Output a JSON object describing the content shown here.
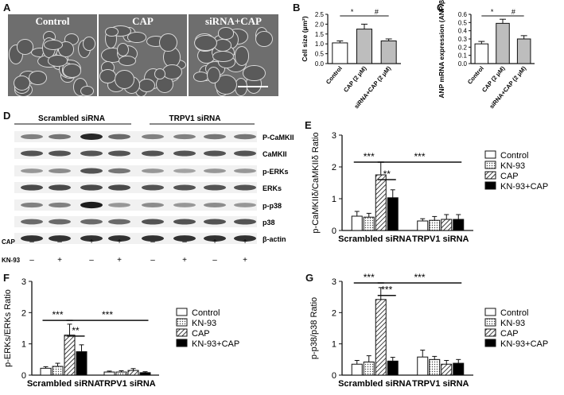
{
  "panel_labels": {
    "A": "A",
    "B": "B",
    "C": "C",
    "D": "D",
    "E": "E",
    "F": "F",
    "G": "G"
  },
  "micrographs": [
    {
      "title": "Control"
    },
    {
      "title": "CAP"
    },
    {
      "title": "siRNA+CAP"
    }
  ],
  "blot": {
    "group_titles": [
      "Scrambled siRNA",
      "TRPV1 siRNA"
    ],
    "bands": [
      "P-CaMKII",
      "CaMKII",
      "p-ERKs",
      "ERKs",
      "p-p38",
      "p38",
      "β-actin"
    ],
    "row_labels": [
      "CAP",
      "KN-93"
    ],
    "cap_signs": [
      "–",
      "–",
      "+",
      "+",
      "–",
      "–",
      "+",
      "+"
    ],
    "kn93_signs": [
      "–",
      "+",
      "–",
      "+",
      "–",
      "+",
      "–",
      "+"
    ]
  },
  "chart_data": [
    {
      "id": "B",
      "type": "bar",
      "ylabel": "Cell size (µm²)",
      "categories": [
        "Control",
        "CAP (2 μM)",
        "siRNA+CAP (2 μM)"
      ],
      "values": [
        1.05,
        1.75,
        1.15
      ],
      "errors": [
        0.1,
        0.25,
        0.1
      ],
      "ylim": [
        0,
        2.5
      ],
      "yticks": [
        "0.0",
        "0.5",
        "1.0",
        "1.5",
        "2.0",
        "2.5"
      ],
      "sig": [
        {
          "from": 0,
          "to": 1,
          "label": "*"
        },
        {
          "from": 1,
          "to": 2,
          "label": "#"
        }
      ]
    },
    {
      "id": "C",
      "type": "bar",
      "ylabel": "ANP mRNA expression (ANP/β-actin)",
      "categories": [
        "Control",
        "CAP (2 μM)",
        "siRNA+CAP (2 μM)"
      ],
      "values": [
        0.24,
        0.49,
        0.3
      ],
      "errors": [
        0.03,
        0.05,
        0.04
      ],
      "ylim": [
        0,
        0.6
      ],
      "yticks": [
        "0.0",
        "0.1",
        "0.2",
        "0.3",
        "0.4",
        "0.5",
        "0.6"
      ],
      "sig": [
        {
          "from": 0,
          "to": 1,
          "label": "*"
        },
        {
          "from": 1,
          "to": 2,
          "label": "#"
        }
      ]
    },
    {
      "id": "E",
      "type": "bar",
      "ylabel": "p-CaMKIIδ/CaMKIIδ Ratio",
      "groups": [
        "Scrambled siRNA",
        "TRPV1 siRNA"
      ],
      "series": [
        {
          "name": "Control",
          "values": [
            0.45,
            0.3
          ],
          "errors": [
            0.15,
            0.07
          ]
        },
        {
          "name": "KN-93",
          "values": [
            0.42,
            0.32
          ],
          "errors": [
            0.12,
            0.12
          ]
        },
        {
          "name": "CAP",
          "values": [
            1.75,
            0.35
          ],
          "errors": [
            0.4,
            0.15
          ]
        },
        {
          "name": "KN-93+CAP",
          "values": [
            1.03,
            0.35
          ],
          "errors": [
            0.25,
            0.15
          ]
        }
      ],
      "ylim": [
        0,
        3
      ],
      "yticks": [
        "0",
        "1",
        "2",
        "3"
      ],
      "sig": [
        {
          "from": [
            0,
            0
          ],
          "to": [
            0,
            2
          ],
          "label": "***",
          "level": 2.15
        },
        {
          "from": [
            0,
            2
          ],
          "to": [
            0,
            3
          ],
          "label": "**",
          "level": 1.6
        },
        {
          "from": [
            0,
            2
          ],
          "to": [
            1,
            3
          ],
          "label": "***",
          "level": 2.15
        }
      ]
    },
    {
      "id": "F",
      "type": "bar",
      "ylabel": "p-ERKs/ERKs Ratio",
      "groups": [
        "Scrambled siRNA",
        "TRPV1 siRNA"
      ],
      "series": [
        {
          "name": "Control",
          "values": [
            0.22,
            0.1
          ],
          "errors": [
            0.05,
            0.03
          ]
        },
        {
          "name": "KN-93",
          "values": [
            0.28,
            0.1
          ],
          "errors": [
            0.1,
            0.04
          ]
        },
        {
          "name": "CAP",
          "values": [
            1.28,
            0.15
          ],
          "errors": [
            0.35,
            0.06
          ]
        },
        {
          "name": "KN-93+CAP",
          "values": [
            0.75,
            0.08
          ],
          "errors": [
            0.22,
            0.03
          ]
        }
      ],
      "ylim": [
        0,
        3
      ],
      "yticks": [
        "0",
        "1",
        "2",
        "3"
      ],
      "sig": [
        {
          "from": [
            0,
            0
          ],
          "to": [
            0,
            2
          ],
          "label": "***",
          "level": 1.75
        },
        {
          "from": [
            0,
            2
          ],
          "to": [
            0,
            3
          ],
          "label": "**",
          "level": 1.25
        },
        {
          "from": [
            0,
            2
          ],
          "to": [
            1,
            3
          ],
          "label": "***",
          "level": 1.75
        }
      ]
    },
    {
      "id": "G",
      "type": "bar",
      "ylabel": "p-p38/p38 Ratio",
      "groups": [
        "Scrambled siRNA",
        "TRPV1 siRNA"
      ],
      "series": [
        {
          "name": "Control",
          "values": [
            0.35,
            0.58
          ],
          "errors": [
            0.12,
            0.22
          ]
        },
        {
          "name": "KN-93",
          "values": [
            0.42,
            0.5
          ],
          "errors": [
            0.2,
            0.1
          ]
        },
        {
          "name": "CAP",
          "values": [
            2.42,
            0.35
          ],
          "errors": [
            0.38,
            0.12
          ]
        },
        {
          "name": "KN-93+CAP",
          "values": [
            0.45,
            0.38
          ],
          "errors": [
            0.12,
            0.12
          ]
        }
      ],
      "ylim": [
        0,
        3
      ],
      "yticks": [
        "0",
        "1",
        "2",
        "3"
      ],
      "sig": [
        {
          "from": [
            0,
            0
          ],
          "to": [
            0,
            2
          ],
          "label": "***",
          "level": 2.95
        },
        {
          "from": [
            0,
            2
          ],
          "to": [
            0,
            3
          ],
          "label": "***",
          "level": 2.55
        },
        {
          "from": [
            0,
            2
          ],
          "to": [
            1,
            3
          ],
          "label": "***",
          "level": 2.95
        }
      ]
    }
  ],
  "legend_entries": [
    "Control",
    "KN-93",
    "CAP",
    "KN-93+CAP"
  ]
}
